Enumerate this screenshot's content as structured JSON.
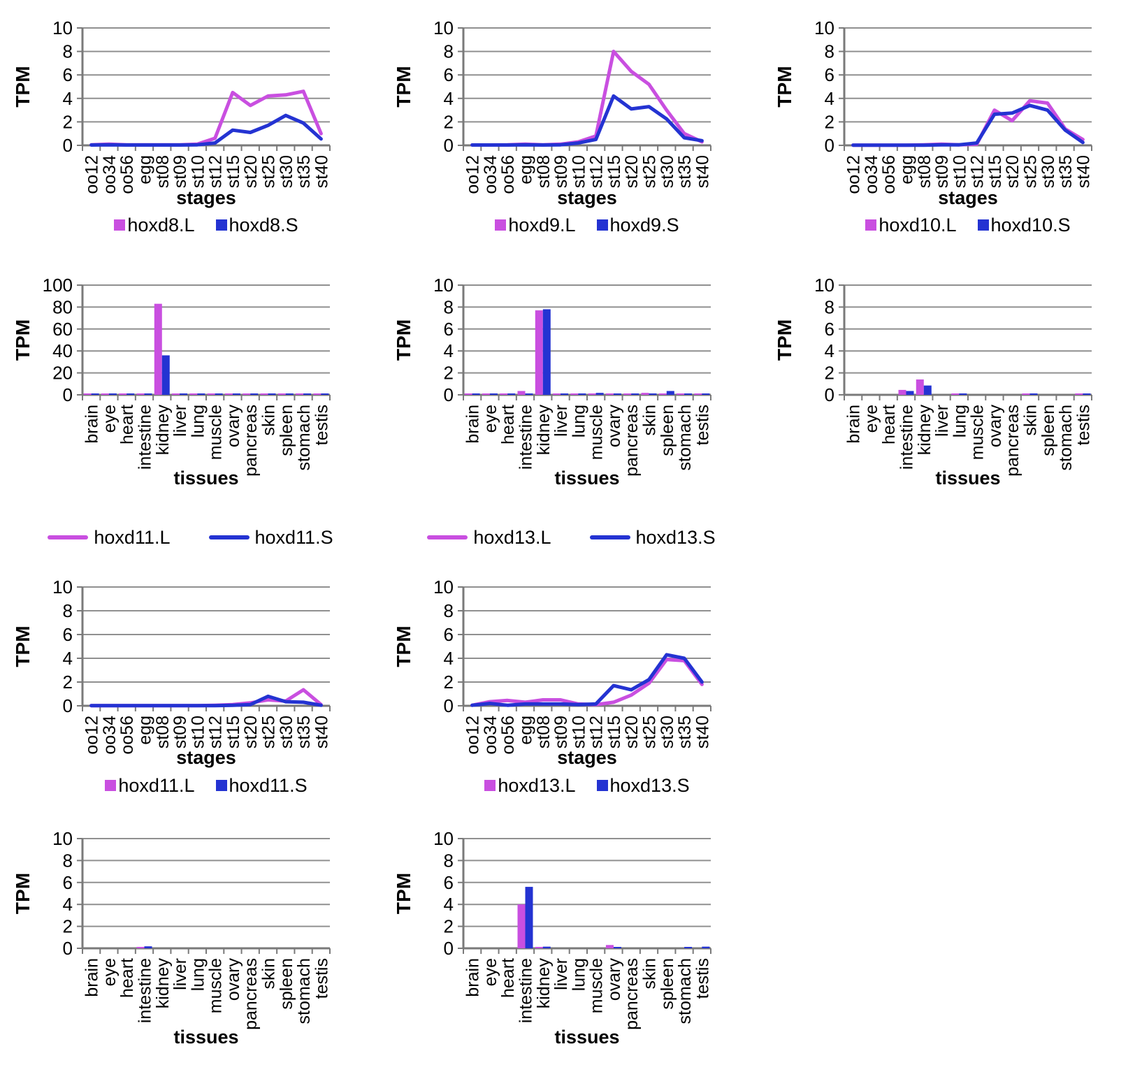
{
  "colors": {
    "L": "#c94fe0",
    "S": "#2433d2",
    "grid": "#909090",
    "axis": "#7a7a7a",
    "text": "#000000"
  },
  "axis_labels": {
    "y": "TPM",
    "x_stages": "stages",
    "x_tissues": "tissues"
  },
  "categories": {
    "stages": [
      "oo12",
      "oo34",
      "oo56",
      "egg",
      "st08",
      "st09",
      "st10",
      "st12",
      "st15",
      "st20",
      "st25",
      "st30",
      "st35",
      "st40"
    ],
    "tissues": [
      "brain",
      "eye",
      "heart",
      "intestine",
      "kidney",
      "liver",
      "lung",
      "muscle",
      "ovary",
      "pancreas",
      "skin",
      "spleen",
      "stomach",
      "testis"
    ]
  },
  "chart_data": [
    {
      "id": "hoxd8-stages",
      "type": "line",
      "categories": "stages",
      "xlabel": "stages",
      "ylabel": "TPM",
      "ylim": [
        0,
        10
      ],
      "yticks": [
        0,
        2,
        4,
        6,
        8,
        10
      ],
      "series": [
        {
          "name": "hoxd8.L",
          "color": "L",
          "values": [
            0.05,
            0.1,
            0.05,
            0.05,
            0.05,
            0.05,
            0.1,
            0.6,
            4.5,
            3.4,
            4.2,
            4.3,
            4.6,
            1.0
          ]
        },
        {
          "name": "hoxd8.S",
          "color": "S",
          "values": [
            0.03,
            0.05,
            0.03,
            0.03,
            0.03,
            0.03,
            0.05,
            0.2,
            1.3,
            1.1,
            1.7,
            2.55,
            1.9,
            0.55
          ]
        }
      ],
      "legend": {
        "style": "square",
        "entries": [
          {
            "label": "hoxd8.L",
            "color": "L"
          },
          {
            "label": "hoxd8.S",
            "color": "S"
          }
        ]
      }
    },
    {
      "id": "hoxd9-stages",
      "type": "line",
      "categories": "stages",
      "xlabel": "stages",
      "ylabel": "TPM",
      "ylim": [
        0,
        10
      ],
      "yticks": [
        0,
        2,
        4,
        6,
        8,
        10
      ],
      "series": [
        {
          "name": "hoxd9.L",
          "color": "L",
          "values": [
            0.03,
            0.03,
            0.05,
            0.1,
            0.05,
            0.1,
            0.3,
            0.8,
            8.0,
            6.3,
            5.2,
            3.0,
            1.0,
            0.3
          ]
        },
        {
          "name": "hoxd9.S",
          "color": "S",
          "values": [
            0.03,
            0.03,
            0.03,
            0.05,
            0.03,
            0.05,
            0.2,
            0.5,
            4.2,
            3.1,
            3.3,
            2.25,
            0.65,
            0.4
          ]
        }
      ],
      "legend": {
        "style": "square",
        "entries": [
          {
            "label": "hoxd9.L",
            "color": "L"
          },
          {
            "label": "hoxd9.S",
            "color": "S"
          }
        ]
      }
    },
    {
      "id": "hoxd10-stages",
      "type": "line",
      "categories": "stages",
      "xlabel": "stages",
      "ylabel": "TPM",
      "ylim": [
        0,
        10
      ],
      "yticks": [
        0,
        2,
        4,
        6,
        8,
        10
      ],
      "series": [
        {
          "name": "hoxd10.L",
          "color": "L",
          "values": [
            0.02,
            0.02,
            0.02,
            0.02,
            0.05,
            0.1,
            0.05,
            0.1,
            3.0,
            2.1,
            3.8,
            3.6,
            1.4,
            0.5
          ]
        },
        {
          "name": "hoxd10.S",
          "color": "S",
          "values": [
            0.02,
            0.02,
            0.02,
            0.02,
            0.02,
            0.05,
            0.05,
            0.2,
            2.65,
            2.75,
            3.4,
            3.0,
            1.3,
            0.25
          ]
        }
      ],
      "legend": {
        "style": "square",
        "entries": [
          {
            "label": "hoxd10.L",
            "color": "L"
          },
          {
            "label": "hoxd10.S",
            "color": "S"
          }
        ]
      }
    },
    {
      "id": "hoxd8-tissues",
      "type": "bar",
      "categories": "tissues",
      "xlabel": "tissues",
      "ylabel": "TPM",
      "ylim": [
        0,
        100
      ],
      "yticks": [
        0,
        20,
        40,
        60,
        80,
        100
      ],
      "series": [
        {
          "name": "hoxd8.L",
          "color": "L",
          "values": [
            0.5,
            0.5,
            0.5,
            0.6,
            83,
            0.5,
            0.5,
            0.4,
            0.2,
            0.4,
            0.5,
            0.5,
            0.5,
            0.5
          ]
        },
        {
          "name": "hoxd8.S",
          "color": "S",
          "values": [
            0.6,
            0.4,
            0.6,
            0.6,
            36,
            0.5,
            0.6,
            0.4,
            0.2,
            0.4,
            0.5,
            0.6,
            0.4,
            0.6
          ]
        }
      ]
    },
    {
      "id": "hoxd9-tissues",
      "type": "bar",
      "categories": "tissues",
      "xlabel": "tissues",
      "ylabel": "TPM",
      "ylim": [
        0,
        10
      ],
      "yticks": [
        0,
        2,
        4,
        6,
        8,
        10
      ],
      "series": [
        {
          "name": "hoxd9.L",
          "color": "L",
          "values": [
            0.03,
            0.08,
            0.12,
            0.35,
            7.7,
            0.03,
            0.08,
            0.05,
            0.02,
            0.08,
            0.18,
            0.12,
            0.1,
            0.08
          ]
        },
        {
          "name": "hoxd9.S",
          "color": "S",
          "values": [
            0.03,
            0.03,
            0.08,
            0.12,
            7.8,
            0.03,
            0.08,
            0.18,
            0.02,
            0.05,
            0.1,
            0.35,
            0.05,
            0.05
          ]
        }
      ]
    },
    {
      "id": "hoxd10-tissues",
      "type": "bar",
      "categories": "tissues",
      "xlabel": "tissues",
      "ylabel": "TPM",
      "ylim": [
        0,
        10
      ],
      "yticks": [
        0,
        2,
        4,
        6,
        8,
        10
      ],
      "series": [
        {
          "name": "hoxd10.L",
          "color": "L",
          "values": [
            0,
            0,
            0,
            0.45,
            1.4,
            0,
            0.1,
            0,
            0,
            0,
            0.05,
            0,
            0,
            0.08
          ]
        },
        {
          "name": "hoxd10.S",
          "color": "S",
          "values": [
            0,
            0,
            0,
            0.35,
            0.85,
            0,
            0.03,
            0,
            0,
            0,
            0.1,
            0,
            0,
            0.1
          ]
        }
      ]
    },
    {
      "id": "hoxd11-stages",
      "type": "line",
      "categories": "stages",
      "xlabel": "stages",
      "ylabel": "TPM",
      "ylim": [
        0,
        10
      ],
      "yticks": [
        0,
        2,
        4,
        6,
        8,
        10
      ],
      "series": [
        {
          "name": "hoxd11.L",
          "color": "L",
          "values": [
            0.02,
            0.02,
            0.02,
            0.02,
            0.02,
            0.02,
            0.02,
            0.05,
            0.1,
            0.25,
            0.5,
            0.4,
            1.35,
            0.1
          ]
        },
        {
          "name": "hoxd11.S",
          "color": "S",
          "values": [
            0.02,
            0.02,
            0.02,
            0.02,
            0.02,
            0.02,
            0.02,
            0.02,
            0.05,
            0.1,
            0.8,
            0.35,
            0.3,
            0.05
          ]
        }
      ],
      "legend": {
        "style": "square",
        "entries": [
          {
            "label": "hoxd11.L",
            "color": "L"
          },
          {
            "label": "hoxd11.S",
            "color": "S"
          }
        ]
      }
    },
    {
      "id": "hoxd13-stages",
      "type": "line",
      "categories": "stages",
      "xlabel": "stages",
      "ylabel": "TPM",
      "ylim": [
        0,
        10
      ],
      "yticks": [
        0,
        2,
        4,
        6,
        8,
        10
      ],
      "series": [
        {
          "name": "hoxd13.L",
          "color": "L",
          "values": [
            0.05,
            0.35,
            0.45,
            0.3,
            0.5,
            0.5,
            0.15,
            0.1,
            0.3,
            0.9,
            1.9,
            3.9,
            3.8,
            1.8
          ]
        },
        {
          "name": "hoxd13.S",
          "color": "S",
          "values": [
            0.05,
            0.2,
            0.05,
            0.15,
            0.15,
            0.15,
            0.1,
            0.15,
            1.7,
            1.35,
            2.2,
            4.3,
            4.0,
            2.0
          ]
        }
      ],
      "legend": {
        "style": "square",
        "entries": [
          {
            "label": "hoxd13.L",
            "color": "L"
          },
          {
            "label": "hoxd13.S",
            "color": "S"
          }
        ]
      }
    },
    {
      "id": "hoxd11-tissues",
      "type": "bar",
      "categories": "tissues",
      "xlabel": "tissues",
      "ylabel": "TPM",
      "ylim": [
        0,
        10
      ],
      "yticks": [
        0,
        2,
        4,
        6,
        8,
        10
      ],
      "series": [
        {
          "name": "hoxd11.L",
          "color": "L",
          "values": [
            0,
            0,
            0,
            0.1,
            0,
            0,
            0,
            0,
            0,
            0,
            0,
            0,
            0,
            0
          ]
        },
        {
          "name": "hoxd11.S",
          "color": "S",
          "values": [
            0,
            0,
            0,
            0.18,
            0,
            0,
            0,
            0,
            0,
            0,
            0,
            0,
            0,
            0
          ]
        }
      ]
    },
    {
      "id": "hoxd13-tissues",
      "type": "bar",
      "categories": "tissues",
      "xlabel": "tissues",
      "ylabel": "TPM",
      "ylim": [
        0,
        10
      ],
      "yticks": [
        0,
        2,
        4,
        6,
        8,
        10
      ],
      "series": [
        {
          "name": "hoxd13.L",
          "color": "L",
          "values": [
            0,
            0,
            0,
            4.0,
            0.1,
            0,
            0,
            0,
            0.3,
            0,
            0,
            0,
            0,
            0
          ]
        },
        {
          "name": "hoxd13.S",
          "color": "S",
          "values": [
            0,
            0,
            0,
            5.6,
            0.15,
            0,
            0,
            0,
            0.1,
            0,
            0,
            0,
            0.02,
            0.15
          ]
        }
      ]
    }
  ],
  "line_legends": [
    {
      "id": "hoxd11",
      "entries": [
        {
          "label": "hoxd11.L",
          "color": "L"
        },
        {
          "label": "hoxd11.S",
          "color": "S"
        }
      ]
    },
    {
      "id": "hoxd13",
      "entries": [
        {
          "label": "hoxd13.L",
          "color": "L"
        },
        {
          "label": "hoxd13.S",
          "color": "S"
        }
      ]
    }
  ]
}
